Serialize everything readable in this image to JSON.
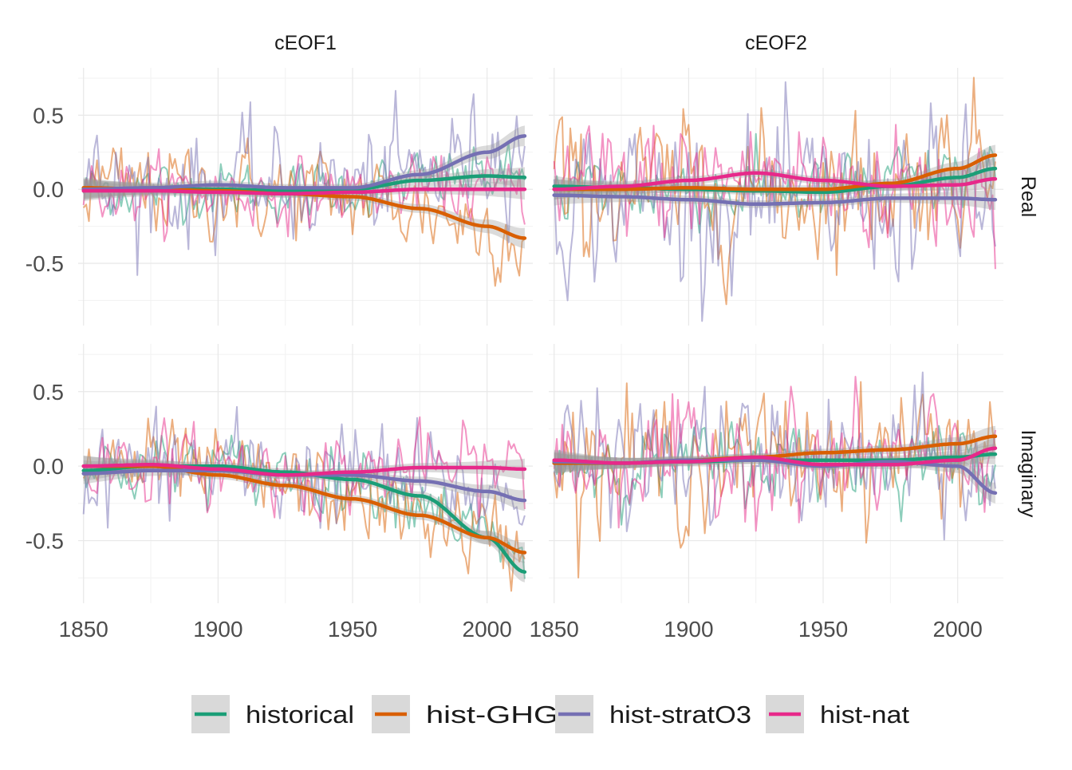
{
  "chart_data": {
    "type": "line",
    "facet_columns": [
      "cEOF1",
      "cEOF2"
    ],
    "facet_rows": [
      "Real",
      "Imaginary"
    ],
    "x_ticks": [
      1850,
      1900,
      1950,
      2000
    ],
    "y_ticks": [
      -0.5,
      0.0,
      0.5
    ],
    "y_tick_labels": [
      "-0.5",
      "0.0",
      "0.5"
    ],
    "xlim": [
      1848,
      2017
    ],
    "ylim": [
      -0.92,
      0.82
    ],
    "grid": true,
    "legend_position": "bottom",
    "series": [
      {
        "name": "historical",
        "color": "#1b9e77"
      },
      {
        "name": "hist-GHG",
        "color": "#d95f02"
      },
      {
        "name": "hist-stratO3",
        "color": "#7570b3"
      },
      {
        "name": "hist-nat",
        "color": "#e7298a"
      }
    ],
    "smooth_x": [
      1850,
      1875,
      1900,
      1925,
      1950,
      1975,
      2000,
      2014
    ],
    "panels": [
      {
        "column": "cEOF1",
        "row": "Real",
        "smooth": {
          "historical": [
            0.0,
            0.0,
            0.0,
            -0.01,
            0.0,
            0.06,
            0.09,
            0.08
          ],
          "hist-GHG": [
            0.01,
            0.0,
            -0.01,
            -0.03,
            -0.05,
            -0.13,
            -0.25,
            -0.33
          ],
          "hist-stratO3": [
            0.0,
            0.01,
            0.03,
            0.01,
            0.01,
            0.1,
            0.25,
            0.36
          ],
          "hist-nat": [
            -0.01,
            -0.01,
            -0.02,
            -0.03,
            -0.02,
            0.0,
            0.0,
            0.0
          ]
        },
        "noise_sd": {
          "historical": 0.09,
          "hist-GHG": 0.15,
          "hist-stratO3": 0.18,
          "hist-nat": 0.1
        },
        "noise_mid": {
          "historical": 0,
          "hist-GHG": 0.05,
          "hist-stratO3": 0.02,
          "hist-nat": 0
        }
      },
      {
        "column": "cEOF2",
        "row": "Real",
        "smooth": {
          "historical": [
            0.02,
            0.01,
            0.0,
            -0.01,
            -0.02,
            0.02,
            0.08,
            0.14
          ],
          "hist-GHG": [
            0.0,
            0.0,
            0.01,
            0.0,
            0.0,
            0.04,
            0.14,
            0.23
          ],
          "hist-stratO3": [
            -0.04,
            -0.05,
            -0.07,
            -0.1,
            -0.09,
            -0.06,
            -0.06,
            -0.07
          ],
          "hist-nat": [
            0.0,
            0.02,
            0.06,
            0.11,
            0.06,
            0.02,
            0.03,
            0.07
          ]
        },
        "noise_sd": {
          "historical": 0.12,
          "hist-GHG": 0.22,
          "hist-stratO3": 0.25,
          "hist-nat": 0.2
        },
        "noise_mid": {
          "historical": 0,
          "hist-GHG": 0,
          "hist-stratO3": 0,
          "hist-nat": 0
        }
      },
      {
        "column": "cEOF1",
        "row": "Imaginary",
        "smooth": {
          "historical": [
            -0.03,
            0.0,
            0.0,
            -0.04,
            -0.09,
            -0.2,
            -0.48,
            -0.71
          ],
          "hist-GHG": [
            0.0,
            0.0,
            -0.06,
            -0.13,
            -0.22,
            -0.33,
            -0.48,
            -0.58
          ],
          "hist-stratO3": [
            -0.05,
            -0.03,
            -0.03,
            -0.06,
            -0.06,
            -0.1,
            -0.17,
            -0.23
          ],
          "hist-nat": [
            0.0,
            0.01,
            -0.02,
            -0.06,
            -0.04,
            -0.01,
            -0.01,
            -0.02
          ]
        },
        "noise_sd": {
          "historical": 0.1,
          "hist-GHG": 0.13,
          "hist-stratO3": 0.17,
          "hist-nat": 0.12
        },
        "noise_mid": {
          "historical": 0,
          "hist-GHG": 0,
          "hist-stratO3": 0,
          "hist-nat": 0
        }
      },
      {
        "column": "cEOF2",
        "row": "Imaginary",
        "smooth": {
          "historical": [
            0.02,
            0.02,
            0.03,
            0.04,
            0.04,
            0.04,
            0.06,
            0.08
          ],
          "hist-GHG": [
            0.02,
            0.02,
            0.04,
            0.06,
            0.09,
            0.11,
            0.15,
            0.2
          ],
          "hist-stratO3": [
            0.03,
            0.02,
            0.04,
            0.04,
            0.0,
            0.03,
            0.0,
            -0.18
          ],
          "hist-nat": [
            0.04,
            0.02,
            0.03,
            0.06,
            0.01,
            0.01,
            0.04,
            0.12
          ]
        },
        "noise_sd": {
          "historical": 0.12,
          "hist-GHG": 0.2,
          "hist-stratO3": 0.2,
          "hist-nat": 0.18
        },
        "noise_mid": {
          "historical": 0,
          "hist-GHG": 0,
          "hist-stratO3": 0,
          "hist-nat": 0
        }
      }
    ]
  }
}
